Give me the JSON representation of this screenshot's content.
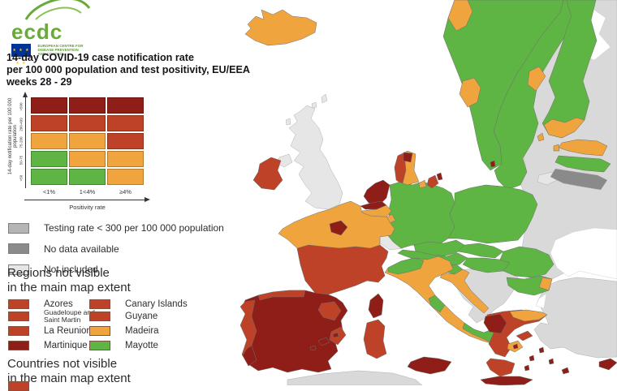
{
  "logo": {
    "wordmark": "ecdc",
    "subtext_line1": "EUROPEAN CENTRE FOR",
    "subtext_line2": "DISEASE PREVENTION",
    "subtext_line3": "AND CONTROL",
    "flag_stars": "★ ★ ★ ★ ★"
  },
  "title": {
    "line1": "14-day COVID-19 case notification rate",
    "line2": "per 100 000 population and test positivity, EU/EEA",
    "line3": "weeks 28 - 29"
  },
  "matrix_legend": {
    "y_axis_label": "14-day notification rate per 100 000 population",
    "x_axis_label": "Positivity rate",
    "row_labels": [
      ">500",
      "200-499",
      "75-200",
      "50-75",
      "<50"
    ],
    "col_labels": [
      "<1%",
      "1<4%",
      "≥4%"
    ],
    "cells": [
      [
        "darkred",
        "darkred",
        "darkred"
      ],
      [
        "red",
        "red",
        "red"
      ],
      [
        "orange",
        "orange",
        "red"
      ],
      [
        "green",
        "orange",
        "orange"
      ],
      [
        "green",
        "green",
        "orange"
      ]
    ]
  },
  "colors": {
    "green": "#5eb544",
    "orange": "#f0a43d",
    "red": "#bd4227",
    "darkred": "#8e1e17",
    "testing_low": "#b5b5b5",
    "no_data": "#8a8a8a",
    "not_included": "#e6e6e6",
    "non_eu": "#d9d9d9",
    "sea": "#ffffff",
    "brand_green": "#6aaa3a",
    "eu_blue": "#003399"
  },
  "status_legend": [
    {
      "key": "testing_low",
      "label": "Testing rate < 300 per 100 000 population"
    },
    {
      "key": "no_data",
      "label": "No data available"
    },
    {
      "key": "not_included",
      "label": "Not included"
    }
  ],
  "regions_legend": {
    "heading_line1": "Regions not visible",
    "heading_line2": "in the main map extent",
    "items": [
      {
        "label": "Azores",
        "key": "red"
      },
      {
        "label": "Canary Islands",
        "key": "red"
      },
      {
        "label": "Guadeloupe and Saint Martin",
        "key": "red"
      },
      {
        "label": "Guyane",
        "key": "red"
      },
      {
        "label": "La Reunion",
        "key": "red"
      },
      {
        "label": "Madeira",
        "key": "orange"
      },
      {
        "label": "Martinique",
        "key": "darkred"
      },
      {
        "label": "Mayotte",
        "key": "green"
      }
    ]
  },
  "countries_legend": {
    "heading_line1": "Countries not visible",
    "heading_line2": "in the main map extent",
    "partial_item_key": "red"
  },
  "map": {
    "regions": [
      {
        "id": "russia_east_europe",
        "status": "non_eu"
      },
      {
        "id": "white_sea_lakes",
        "status": "sea"
      },
      {
        "id": "black_sea",
        "status": "sea"
      },
      {
        "id": "turkey",
        "status": "non_eu"
      },
      {
        "id": "bosporus",
        "status": "sea"
      },
      {
        "id": "africa_coast",
        "status": "non_eu"
      },
      {
        "id": "western_balkans",
        "status": "non_eu"
      },
      {
        "id": "great_britain",
        "status": "not_included"
      },
      {
        "id": "shetland",
        "status": "not_included"
      },
      {
        "id": "orkney",
        "status": "not_included"
      },
      {
        "id": "hebrides",
        "status": "not_included"
      },
      {
        "id": "northern_ireland",
        "status": "not_included"
      },
      {
        "id": "switzerland",
        "status": "not_included"
      },
      {
        "id": "kaliningrad",
        "status": "not_included"
      },
      {
        "id": "ireland",
        "status": "red"
      },
      {
        "id": "iceland",
        "status": "orange"
      },
      {
        "id": "sweden",
        "status": "green"
      },
      {
        "id": "sweden_east_coast",
        "status": "orange"
      },
      {
        "id": "norway",
        "status": "green"
      },
      {
        "id": "norway_north",
        "status": "orange"
      },
      {
        "id": "norway_vestland",
        "status": "orange"
      },
      {
        "id": "finland",
        "status": "green"
      },
      {
        "id": "finland_south",
        "status": "orange"
      },
      {
        "id": "aland",
        "status": "orange"
      },
      {
        "id": "estonia",
        "status": "orange"
      },
      {
        "id": "estonia_islands",
        "status": "orange"
      },
      {
        "id": "latvia",
        "status": "green"
      },
      {
        "id": "lithuania",
        "status": "no_data"
      },
      {
        "id": "germany",
        "status": "green"
      },
      {
        "id": "poland",
        "status": "green"
      },
      {
        "id": "czechia",
        "status": "green"
      },
      {
        "id": "slovakia",
        "status": "green"
      },
      {
        "id": "austria",
        "status": "green"
      },
      {
        "id": "hungary",
        "status": "green"
      },
      {
        "id": "slovenia",
        "status": "green"
      },
      {
        "id": "croatia",
        "status": "orange"
      },
      {
        "id": "romania",
        "status": "green"
      },
      {
        "id": "bulgaria",
        "status": "green"
      },
      {
        "id": "bulgaria_se",
        "status": "orange"
      },
      {
        "id": "denmark_jutland",
        "status": "orange"
      },
      {
        "id": "denmark_west",
        "status": "red"
      },
      {
        "id": "denmark_north",
        "status": "darkred"
      },
      {
        "id": "funen",
        "status": "orange"
      },
      {
        "id": "zealand",
        "status": "red"
      },
      {
        "id": "copenhagen",
        "status": "darkred"
      },
      {
        "id": "bornholm",
        "status": "darkred"
      },
      {
        "id": "netherlands",
        "status": "darkred"
      },
      {
        "id": "flanders",
        "status": "darkred"
      },
      {
        "id": "wallonia",
        "status": "orange"
      },
      {
        "id": "luxembourg",
        "status": "orange"
      },
      {
        "id": "france_north",
        "status": "orange"
      },
      {
        "id": "france_south",
        "status": "red"
      },
      {
        "id": "ile_de_france",
        "status": "darkred"
      },
      {
        "id": "corsica",
        "status": "darkred"
      },
      {
        "id": "spain",
        "status": "darkred"
      },
      {
        "id": "spain_north_strip",
        "status": "red"
      },
      {
        "id": "spain_east",
        "status": "red"
      },
      {
        "id": "spain_southeast",
        "status": "red"
      },
      {
        "id": "portugal",
        "status": "red"
      },
      {
        "id": "portugal_south",
        "status": "darkred"
      },
      {
        "id": "mallorca",
        "status": "darkred"
      },
      {
        "id": "menorca",
        "status": "darkred"
      },
      {
        "id": "ibiza",
        "status": "darkred"
      },
      {
        "id": "italy",
        "status": "orange"
      },
      {
        "id": "italy_northwest",
        "status": "green"
      },
      {
        "id": "italy_puglia",
        "status": "green"
      },
      {
        "id": "italy_campania",
        "status": "green"
      },
      {
        "id": "sicily",
        "status": "darkred"
      },
      {
        "id": "sardinia",
        "status": "red"
      },
      {
        "id": "greece",
        "status": "red"
      },
      {
        "id": "greece_northwest",
        "status": "darkred"
      },
      {
        "id": "greece_north_strip",
        "status": "orange"
      },
      {
        "id": "attica",
        "status": "orange"
      },
      {
        "id": "athens",
        "status": "darkred"
      },
      {
        "id": "euboea",
        "status": "red"
      },
      {
        "id": "peloponnese",
        "status": "red"
      },
      {
        "id": "crete",
        "status": "darkred"
      },
      {
        "id": "aegean_island_1",
        "status": "darkred"
      },
      {
        "id": "aegean_island_2",
        "status": "darkred"
      },
      {
        "id": "aegean_island_3",
        "status": "darkred"
      },
      {
        "id": "aegean_island_4",
        "status": "darkred"
      },
      {
        "id": "rhodes",
        "status": "darkred"
      },
      {
        "id": "cyprus",
        "status": "darkred"
      }
    ]
  }
}
